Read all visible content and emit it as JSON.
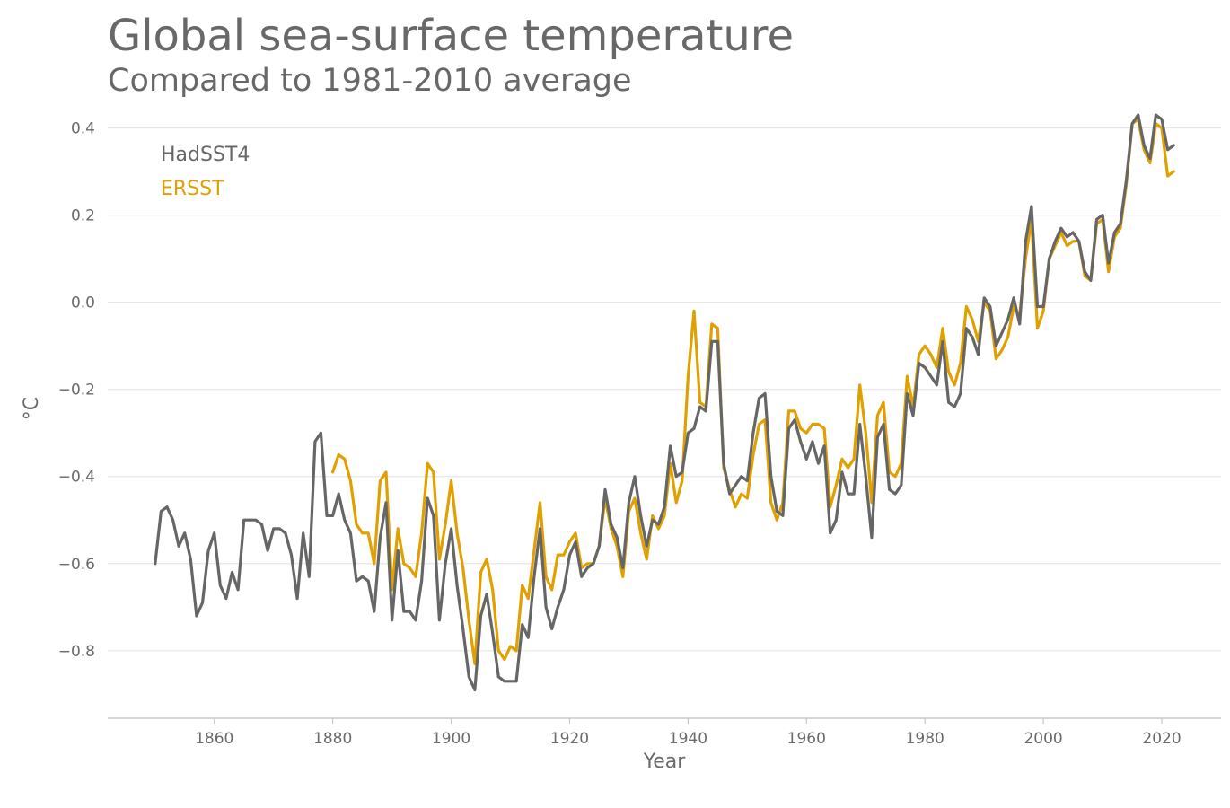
{
  "header": {
    "title": "Global sea-surface temperature",
    "subtitle": "Compared to 1981-2010 average"
  },
  "chart_data": {
    "type": "line",
    "title": "Global sea-surface temperature",
    "subtitle": "Compared to 1981-2010 average",
    "xlabel": "Year",
    "ylabel": "°C",
    "xlim": [
      1842,
      2030
    ],
    "ylim": [
      -0.955,
      0.43
    ],
    "x_ticks": [
      1860,
      1880,
      1900,
      1920,
      1940,
      1960,
      1980,
      2000,
      2020
    ],
    "y_ticks": [
      0.4,
      0.2,
      0.0,
      -0.2,
      -0.4,
      -0.6,
      -0.8
    ],
    "y_tick_labels": [
      "0.4",
      "0.2",
      "0.0",
      "−0.2",
      "−0.4",
      "−0.6",
      "−0.8"
    ],
    "grid": "horizontal",
    "legend": "top-left",
    "series": [
      {
        "name": "HadSST4",
        "color": "#666666",
        "x_start": 1850,
        "values": [
          -0.6,
          -0.48,
          -0.47,
          -0.5,
          -0.56,
          -0.53,
          -0.59,
          -0.72,
          -0.69,
          -0.57,
          -0.53,
          -0.65,
          -0.68,
          -0.62,
          -0.66,
          -0.5,
          -0.5,
          -0.5,
          -0.51,
          -0.57,
          -0.52,
          -0.52,
          -0.53,
          -0.58,
          -0.68,
          -0.53,
          -0.63,
          -0.32,
          -0.3,
          -0.49,
          -0.49,
          -0.44,
          -0.5,
          -0.53,
          -0.64,
          -0.63,
          -0.64,
          -0.71,
          -0.54,
          -0.46,
          -0.73,
          -0.57,
          -0.71,
          -0.71,
          -0.73,
          -0.64,
          -0.45,
          -0.49,
          -0.73,
          -0.6,
          -0.52,
          -0.65,
          -0.75,
          -0.86,
          -0.89,
          -0.72,
          -0.67,
          -0.76,
          -0.86,
          -0.87,
          -0.87,
          -0.87,
          -0.74,
          -0.77,
          -0.63,
          -0.52,
          -0.7,
          -0.75,
          -0.7,
          -0.66,
          -0.58,
          -0.55,
          -0.63,
          -0.61,
          -0.6,
          -0.56,
          -0.43,
          -0.51,
          -0.54,
          -0.61,
          -0.46,
          -0.4,
          -0.49,
          -0.56,
          -0.5,
          -0.51,
          -0.47,
          -0.33,
          -0.4,
          -0.39,
          -0.3,
          -0.29,
          -0.24,
          -0.25,
          -0.09,
          -0.09,
          -0.37,
          -0.44,
          -0.42,
          -0.4,
          -0.41,
          -0.3,
          -0.22,
          -0.21,
          -0.4,
          -0.48,
          -0.49,
          -0.29,
          -0.27,
          -0.32,
          -0.36,
          -0.32,
          -0.37,
          -0.33,
          -0.53,
          -0.5,
          -0.39,
          -0.44,
          -0.44,
          -0.28,
          -0.4,
          -0.54,
          -0.31,
          -0.28,
          -0.43,
          -0.44,
          -0.42,
          -0.21,
          -0.26,
          -0.14,
          -0.15,
          -0.17,
          -0.19,
          -0.09,
          -0.23,
          -0.24,
          -0.21,
          -0.06,
          -0.08,
          -0.12,
          0.01,
          -0.01,
          -0.1,
          -0.07,
          -0.04,
          0.01,
          -0.05,
          0.14,
          0.22,
          -0.01,
          -0.01,
          0.1,
          0.14,
          0.17,
          0.15,
          0.16,
          0.14,
          0.07,
          0.05,
          0.19,
          0.2,
          0.09,
          0.16,
          0.18,
          0.28,
          0.41,
          0.43,
          0.36,
          0.33,
          0.43,
          0.42,
          0.35,
          0.36
        ]
      },
      {
        "name": "ERSST",
        "color": "#e0a000",
        "x_start": 1880,
        "values": [
          -0.39,
          -0.35,
          -0.36,
          -0.41,
          -0.51,
          -0.53,
          -0.53,
          -0.6,
          -0.41,
          -0.39,
          -0.66,
          -0.52,
          -0.6,
          -0.61,
          -0.63,
          -0.53,
          -0.37,
          -0.39,
          -0.59,
          -0.51,
          -0.41,
          -0.53,
          -0.61,
          -0.73,
          -0.83,
          -0.62,
          -0.59,
          -0.66,
          -0.8,
          -0.82,
          -0.79,
          -0.8,
          -0.65,
          -0.68,
          -0.57,
          -0.46,
          -0.63,
          -0.66,
          -0.58,
          -0.58,
          -0.55,
          -0.53,
          -0.61,
          -0.6,
          -0.6,
          -0.56,
          -0.45,
          -0.52,
          -0.56,
          -0.63,
          -0.48,
          -0.45,
          -0.53,
          -0.59,
          -0.49,
          -0.52,
          -0.49,
          -0.37,
          -0.46,
          -0.41,
          -0.17,
          -0.02,
          -0.23,
          -0.24,
          -0.05,
          -0.06,
          -0.38,
          -0.43,
          -0.47,
          -0.44,
          -0.45,
          -0.35,
          -0.28,
          -0.27,
          -0.46,
          -0.5,
          -0.46,
          -0.25,
          -0.25,
          -0.29,
          -0.3,
          -0.28,
          -0.28,
          -0.29,
          -0.47,
          -0.42,
          -0.36,
          -0.38,
          -0.36,
          -0.19,
          -0.3,
          -0.46,
          -0.26,
          -0.23,
          -0.39,
          -0.4,
          -0.37,
          -0.17,
          -0.24,
          -0.12,
          -0.1,
          -0.12,
          -0.15,
          -0.06,
          -0.16,
          -0.19,
          -0.14,
          -0.01,
          -0.04,
          -0.09,
          0.0,
          -0.02,
          -0.13,
          -0.11,
          -0.08,
          -0.01,
          -0.03,
          0.1,
          0.19,
          -0.06,
          -0.02,
          0.1,
          0.13,
          0.16,
          0.13,
          0.14,
          0.14,
          0.06,
          0.05,
          0.18,
          0.19,
          0.07,
          0.15,
          0.17,
          0.27,
          0.41,
          0.42,
          0.35,
          0.32,
          0.41,
          0.4,
          0.29,
          0.3
        ]
      }
    ]
  }
}
